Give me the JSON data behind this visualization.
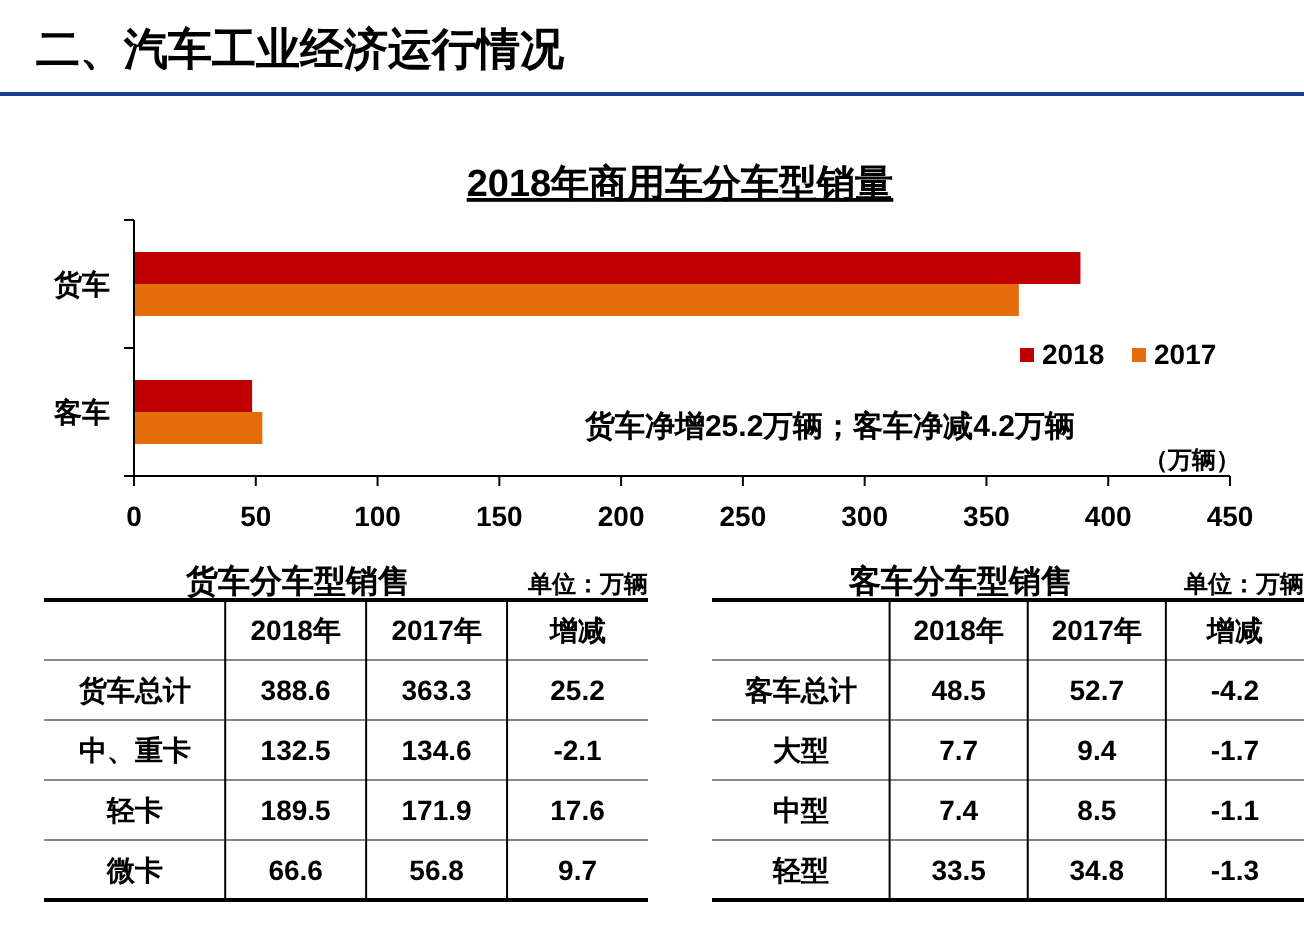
{
  "chart_data": [
    {
      "type": "other",
      "title": "二、汽车工业经济运行情况"
    },
    {
      "type": "bar",
      "orientation": "horizontal",
      "title": "2018年商用车分车型销量",
      "categories": [
        "货车",
        "客车"
      ],
      "series": [
        {
          "name": "2018",
          "color": "#c00000",
          "values": [
            388.6,
            48.5
          ]
        },
        {
          "name": "2017",
          "color": "#e46c0a",
          "values": [
            363.3,
            52.7
          ]
        }
      ],
      "xlim": [
        0,
        450
      ],
      "xticks": [
        0,
        50,
        100,
        150,
        200,
        250,
        300,
        350,
        400,
        450
      ],
      "xlabel": "（万辆）",
      "annotations": [
        "货车净增25.2万辆；客车净减4.2万辆"
      ],
      "legend": "right",
      "grid": false
    },
    {
      "type": "heatmap",
      "data_labels": true,
      "title": "货车分车型销售",
      "subtitle": "单位：万辆",
      "categories": [
        "2018年",
        "2017年",
        "增减"
      ],
      "y_categories": [
        "货车总计",
        "中、重卡",
        "轻卡",
        "微卡"
      ],
      "cells": [
        [
          388.6,
          363.3,
          25.2
        ],
        [
          132.5,
          134.6,
          -2.1
        ],
        [
          189.5,
          171.9,
          17.6
        ],
        [
          66.6,
          56.8,
          9.7
        ]
      ]
    },
    {
      "type": "heatmap",
      "data_labels": true,
      "title": "客车分车型销售",
      "subtitle": "单位：万辆",
      "categories": [
        "2018年",
        "2017年",
        "增减"
      ],
      "y_categories": [
        "客车总计",
        "大型",
        "中型",
        "轻型"
      ],
      "cells": [
        [
          48.5,
          52.7,
          -4.2
        ],
        [
          7.7,
          9.4,
          -1.7
        ],
        [
          7.4,
          8.5,
          -1.1
        ],
        [
          33.5,
          34.8,
          -1.3
        ]
      ]
    }
  ]
}
